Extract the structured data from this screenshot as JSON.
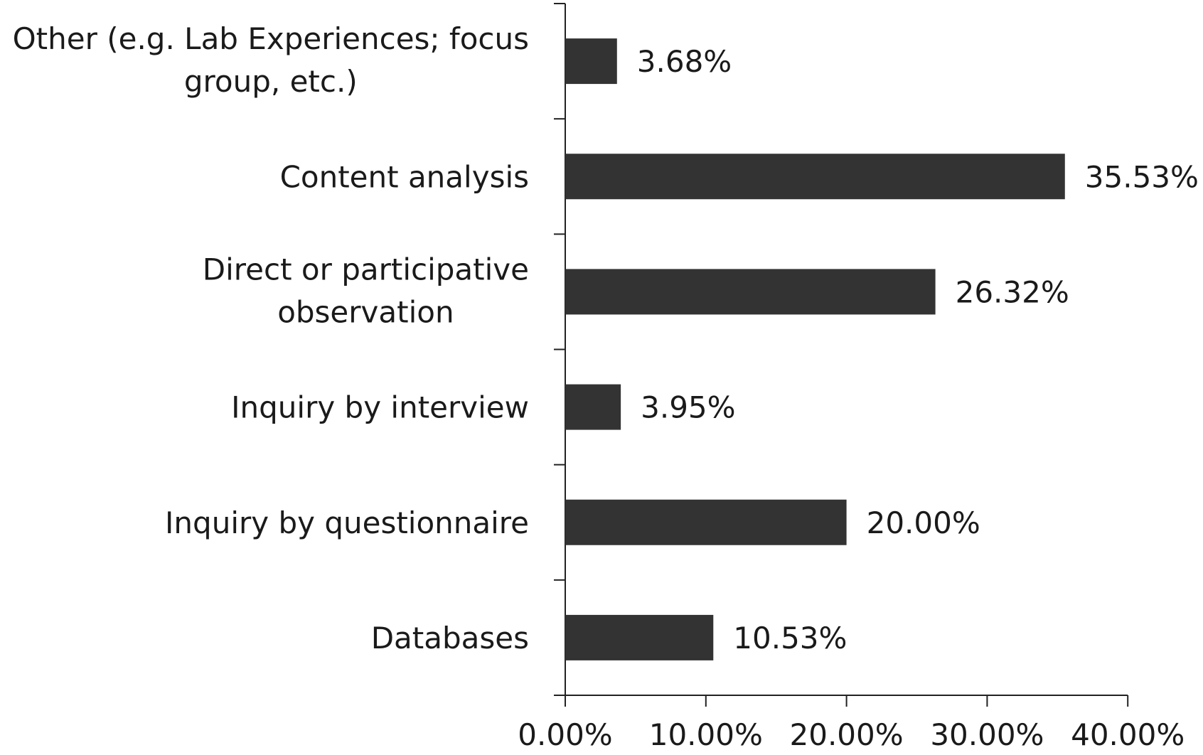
{
  "chart_data": {
    "type": "bar",
    "orientation": "horizontal",
    "categories": [
      [
        "Other (e.g. Lab Experiences; focus",
        "group, etc.)"
      ],
      [
        "Content analysis"
      ],
      [
        "Direct or participative",
        "observation"
      ],
      [
        "Inquiry by interview"
      ],
      [
        "Inquiry by questionnaire"
      ],
      [
        "Databases"
      ]
    ],
    "values": [
      3.68,
      35.53,
      26.32,
      3.95,
      20.0,
      10.53
    ],
    "value_labels": [
      "3.68%",
      "35.53%",
      "26.32%",
      "3.95%",
      "20.00%",
      "10.53%"
    ],
    "xlim": [
      0,
      40
    ],
    "x_ticks": [
      0,
      10,
      20,
      30,
      40
    ],
    "x_tick_labels": [
      "0.00%",
      "10.00%",
      "20.00%",
      "30.00%",
      "40.00%"
    ],
    "title": "",
    "xlabel": "",
    "ylabel": "",
    "grid": false,
    "legend": "none",
    "colors": {
      "bar": "#333333",
      "axis": "#222222",
      "text": "#1a1a1a"
    }
  }
}
